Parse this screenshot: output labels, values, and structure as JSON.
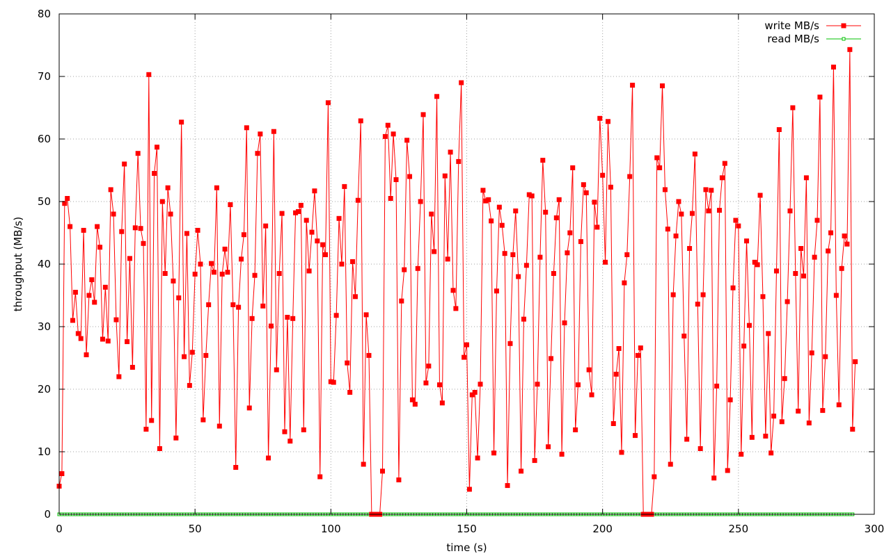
{
  "chart_data": {
    "type": "line",
    "title": "",
    "xlabel": "time (s)",
    "ylabel": "throughput (MB/s)",
    "xlim": [
      0,
      300
    ],
    "ylim": [
      0,
      80
    ],
    "xticks": [
      0,
      50,
      100,
      150,
      200,
      250,
      300
    ],
    "yticks": [
      0,
      10,
      20,
      30,
      40,
      50,
      60,
      70,
      80
    ],
    "grid": true,
    "legend_position": "top-right",
    "colors": {
      "write": "#ff0000",
      "read": "#00c000"
    },
    "series": [
      {
        "name": "write MB/s",
        "marker": "filled-square",
        "x_start": 0,
        "x_step": 1,
        "values": [
          4.5,
          6.5,
          49.7,
          50.5,
          46,
          31,
          35.5,
          28.9,
          28.1,
          45.4,
          25.5,
          35,
          37.5,
          33.9,
          46,
          42.7,
          28,
          36.3,
          27.7,
          51.9,
          48,
          31.1,
          22,
          45.2,
          56,
          27.6,
          40.9,
          23.5,
          45.8,
          57.7,
          45.7,
          43.3,
          13.6,
          70.3,
          15,
          54.5,
          58.7,
          10.5,
          50,
          38.5,
          52.2,
          48,
          37.3,
          12.2,
          34.6,
          62.7,
          25.2,
          44.9,
          20.6,
          25.9,
          38.4,
          45.4,
          40,
          15.1,
          25.4,
          33.5,
          40.1,
          38.7,
          52.2,
          14.1,
          38.4,
          42.4,
          38.7,
          49.5,
          33.5,
          7.5,
          33.1,
          40.8,
          44.7,
          61.8,
          17,
          31.3,
          38.2,
          57.7,
          60.8,
          33.3,
          46.1,
          9,
          30.1,
          61.2,
          23.1,
          38.5,
          48.1,
          13.2,
          31.5,
          11.7,
          31.3,
          48.2,
          48.4,
          49.4,
          13.5,
          47,
          38.9,
          45.1,
          51.7,
          43.7,
          6,
          43.1,
          41.5,
          65.8,
          21.2,
          21.1,
          31.8,
          47.3,
          40,
          52.4,
          24.2,
          19.5,
          40.4,
          34.8,
          50.2,
          62.9,
          8,
          31.9,
          25.4,
          0,
          0,
          0,
          0,
          6.9,
          60.4,
          62.2,
          50.5,
          60.8,
          53.5,
          5.5,
          34.1,
          39.1,
          59.8,
          54,
          18.3,
          17.6,
          39.3,
          50,
          63.9,
          21,
          23.7,
          48,
          42,
          66.8,
          20.7,
          17.8,
          54.1,
          40.8,
          57.9,
          35.8,
          32.9,
          56.4,
          69,
          25.1,
          27.1,
          4,
          19.1,
          19.5,
          9,
          20.8,
          51.8,
          50.1,
          50.3,
          46.9,
          9.8,
          35.7,
          49.1,
          46.2,
          41.7,
          4.6,
          27.3,
          41.5,
          48.5,
          38,
          6.9,
          31.2,
          39.8,
          51.1,
          50.9,
          8.6,
          20.8,
          41.1,
          56.6,
          48.3,
          10.8,
          24.9,
          38.5,
          47.4,
          50.3,
          9.6,
          30.6,
          41.8,
          45,
          55.4,
          13.5,
          20.7,
          43.6,
          52.7,
          51.4,
          23.1,
          19.1,
          49.9,
          45.9,
          63.3,
          54.2,
          40.3,
          62.8,
          52.3,
          14.5,
          22.4,
          26.5,
          9.9,
          37,
          41.5,
          54,
          68.6,
          12.6,
          25.4,
          26.6,
          0,
          0,
          0,
          0,
          6,
          57,
          55.4,
          68.5,
          51.9,
          45.6,
          8,
          35.1,
          44.5,
          50,
          48,
          28.5,
          12,
          42.5,
          48.1,
          57.6,
          33.6,
          10.5,
          35.1,
          51.9,
          48.5,
          51.8,
          5.8,
          20.5,
          48.6,
          53.8,
          56.1,
          7,
          18.3,
          36.2,
          47,
          46.1,
          9.6,
          26.9,
          43.7,
          30.2,
          12.3,
          40.3,
          39.9,
          51,
          34.8,
          12.5,
          28.9,
          9.8,
          15.7,
          38.9,
          61.5,
          14.8,
          21.7,
          34,
          48.5,
          65,
          38.5,
          16.5,
          42.5,
          38.1,
          53.8,
          14.6,
          25.8,
          41.1,
          47,
          66.7,
          16.6,
          25.2,
          42.1,
          45,
          71.5,
          35,
          17.5,
          39.3,
          44.5,
          43.2,
          74.3,
          13.6,
          24.4
        ]
      },
      {
        "name": "read MB/s",
        "marker": "open-square",
        "x_start": 0,
        "x_step": 1,
        "count": 293,
        "constant_value": 0
      }
    ]
  }
}
